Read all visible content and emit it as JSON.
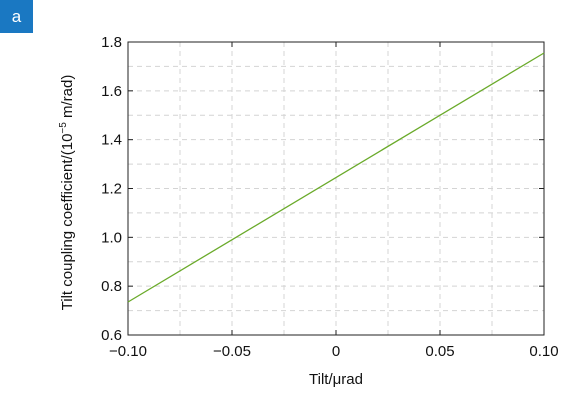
{
  "panel_label": "a",
  "colors": {
    "badge": "#1a78c2",
    "line": "#6aaa2a",
    "axis": "#222222",
    "grid": "#d4d4d4"
  },
  "chart_data": {
    "type": "line",
    "title": "",
    "xlabel": "Tilt/μrad",
    "ylabel_main": "Tilt coupling coefficient/(10",
    "ylabel_exp": "−5",
    "ylabel_unit": " m/rad)",
    "xlim": [
      -0.1,
      0.1
    ],
    "ylim": [
      0.6,
      1.8
    ],
    "x_ticks": [
      -0.1,
      -0.05,
      0,
      0.05,
      0.1
    ],
    "x_tick_labels": [
      "−0.10",
      "−0.05",
      "0",
      "0.05",
      "0.10"
    ],
    "y_ticks": [
      0.6,
      0.8,
      1.0,
      1.2,
      1.4,
      1.6,
      1.8
    ],
    "y_tick_labels": [
      "0.6",
      "0.8",
      "1.0",
      "1.2",
      "1.4",
      "1.6",
      "1.8"
    ],
    "x_minor_grid": [
      -0.075,
      -0.025,
      0.025,
      0.075
    ],
    "y_minor_grid": [
      0.7,
      0.9,
      1.1,
      1.3,
      1.5,
      1.7
    ],
    "grid": true,
    "series": [
      {
        "x": [
          -0.1,
          0.1
        ],
        "y": [
          0.735,
          1.755
        ]
      }
    ]
  }
}
